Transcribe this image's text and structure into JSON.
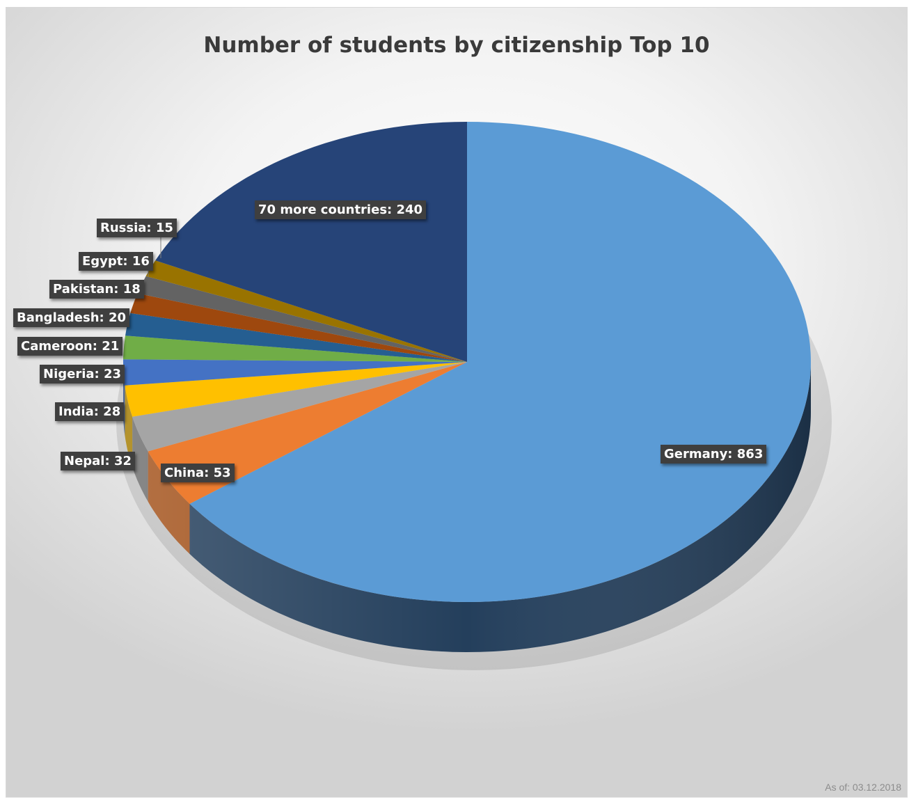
{
  "chart_data": {
    "type": "pie",
    "title": "Number of students by citizenship Top 10",
    "slices": [
      {
        "label": "Germany",
        "value": 863,
        "data_label": "Germany: 863",
        "color": "#5b9bd5",
        "side_color": "#243f5c"
      },
      {
        "label": "China",
        "value": 53,
        "data_label": "China: 53",
        "color": "#ed7d31",
        "side_color": "#a3521b"
      },
      {
        "label": "Nepal",
        "value": 32,
        "data_label": "Nepal: 32",
        "color": "#a5a5a5",
        "side_color": "#6d6d6d"
      },
      {
        "label": "India",
        "value": 28,
        "data_label": "India: 28",
        "color": "#ffc000",
        "side_color": "#a47c00"
      },
      {
        "label": "Nigeria",
        "value": 23,
        "data_label": "Nigeria: 23",
        "color": "#4472c4",
        "side_color": "#2c4a80"
      },
      {
        "label": "Cameroon",
        "value": 21,
        "data_label": "Cameroon: 21",
        "color": "#70ad47",
        "side_color": "#47702c"
      },
      {
        "label": "Bangladesh",
        "value": 20,
        "data_label": "Bangladesh: 20",
        "color": "#255e91",
        "side_color": "#173b5b"
      },
      {
        "label": "Pakistan",
        "value": 18,
        "data_label": "Pakistan: 18",
        "color": "#9e480e",
        "side_color": "#652e09"
      },
      {
        "label": "Egypt",
        "value": 16,
        "data_label": "Egypt: 16",
        "color": "#636363",
        "side_color": "#3f3f3f"
      },
      {
        "label": "Russia",
        "value": 15,
        "data_label": "Russia: 15",
        "color": "#997300",
        "side_color": "#614900"
      },
      {
        "label": "70 more countries",
        "value": 240,
        "data_label": "70 more countries: 240",
        "color": "#264478",
        "side_color": "#172a4a"
      }
    ]
  },
  "footer": {
    "as_of": "As of: 03.12.2018"
  }
}
